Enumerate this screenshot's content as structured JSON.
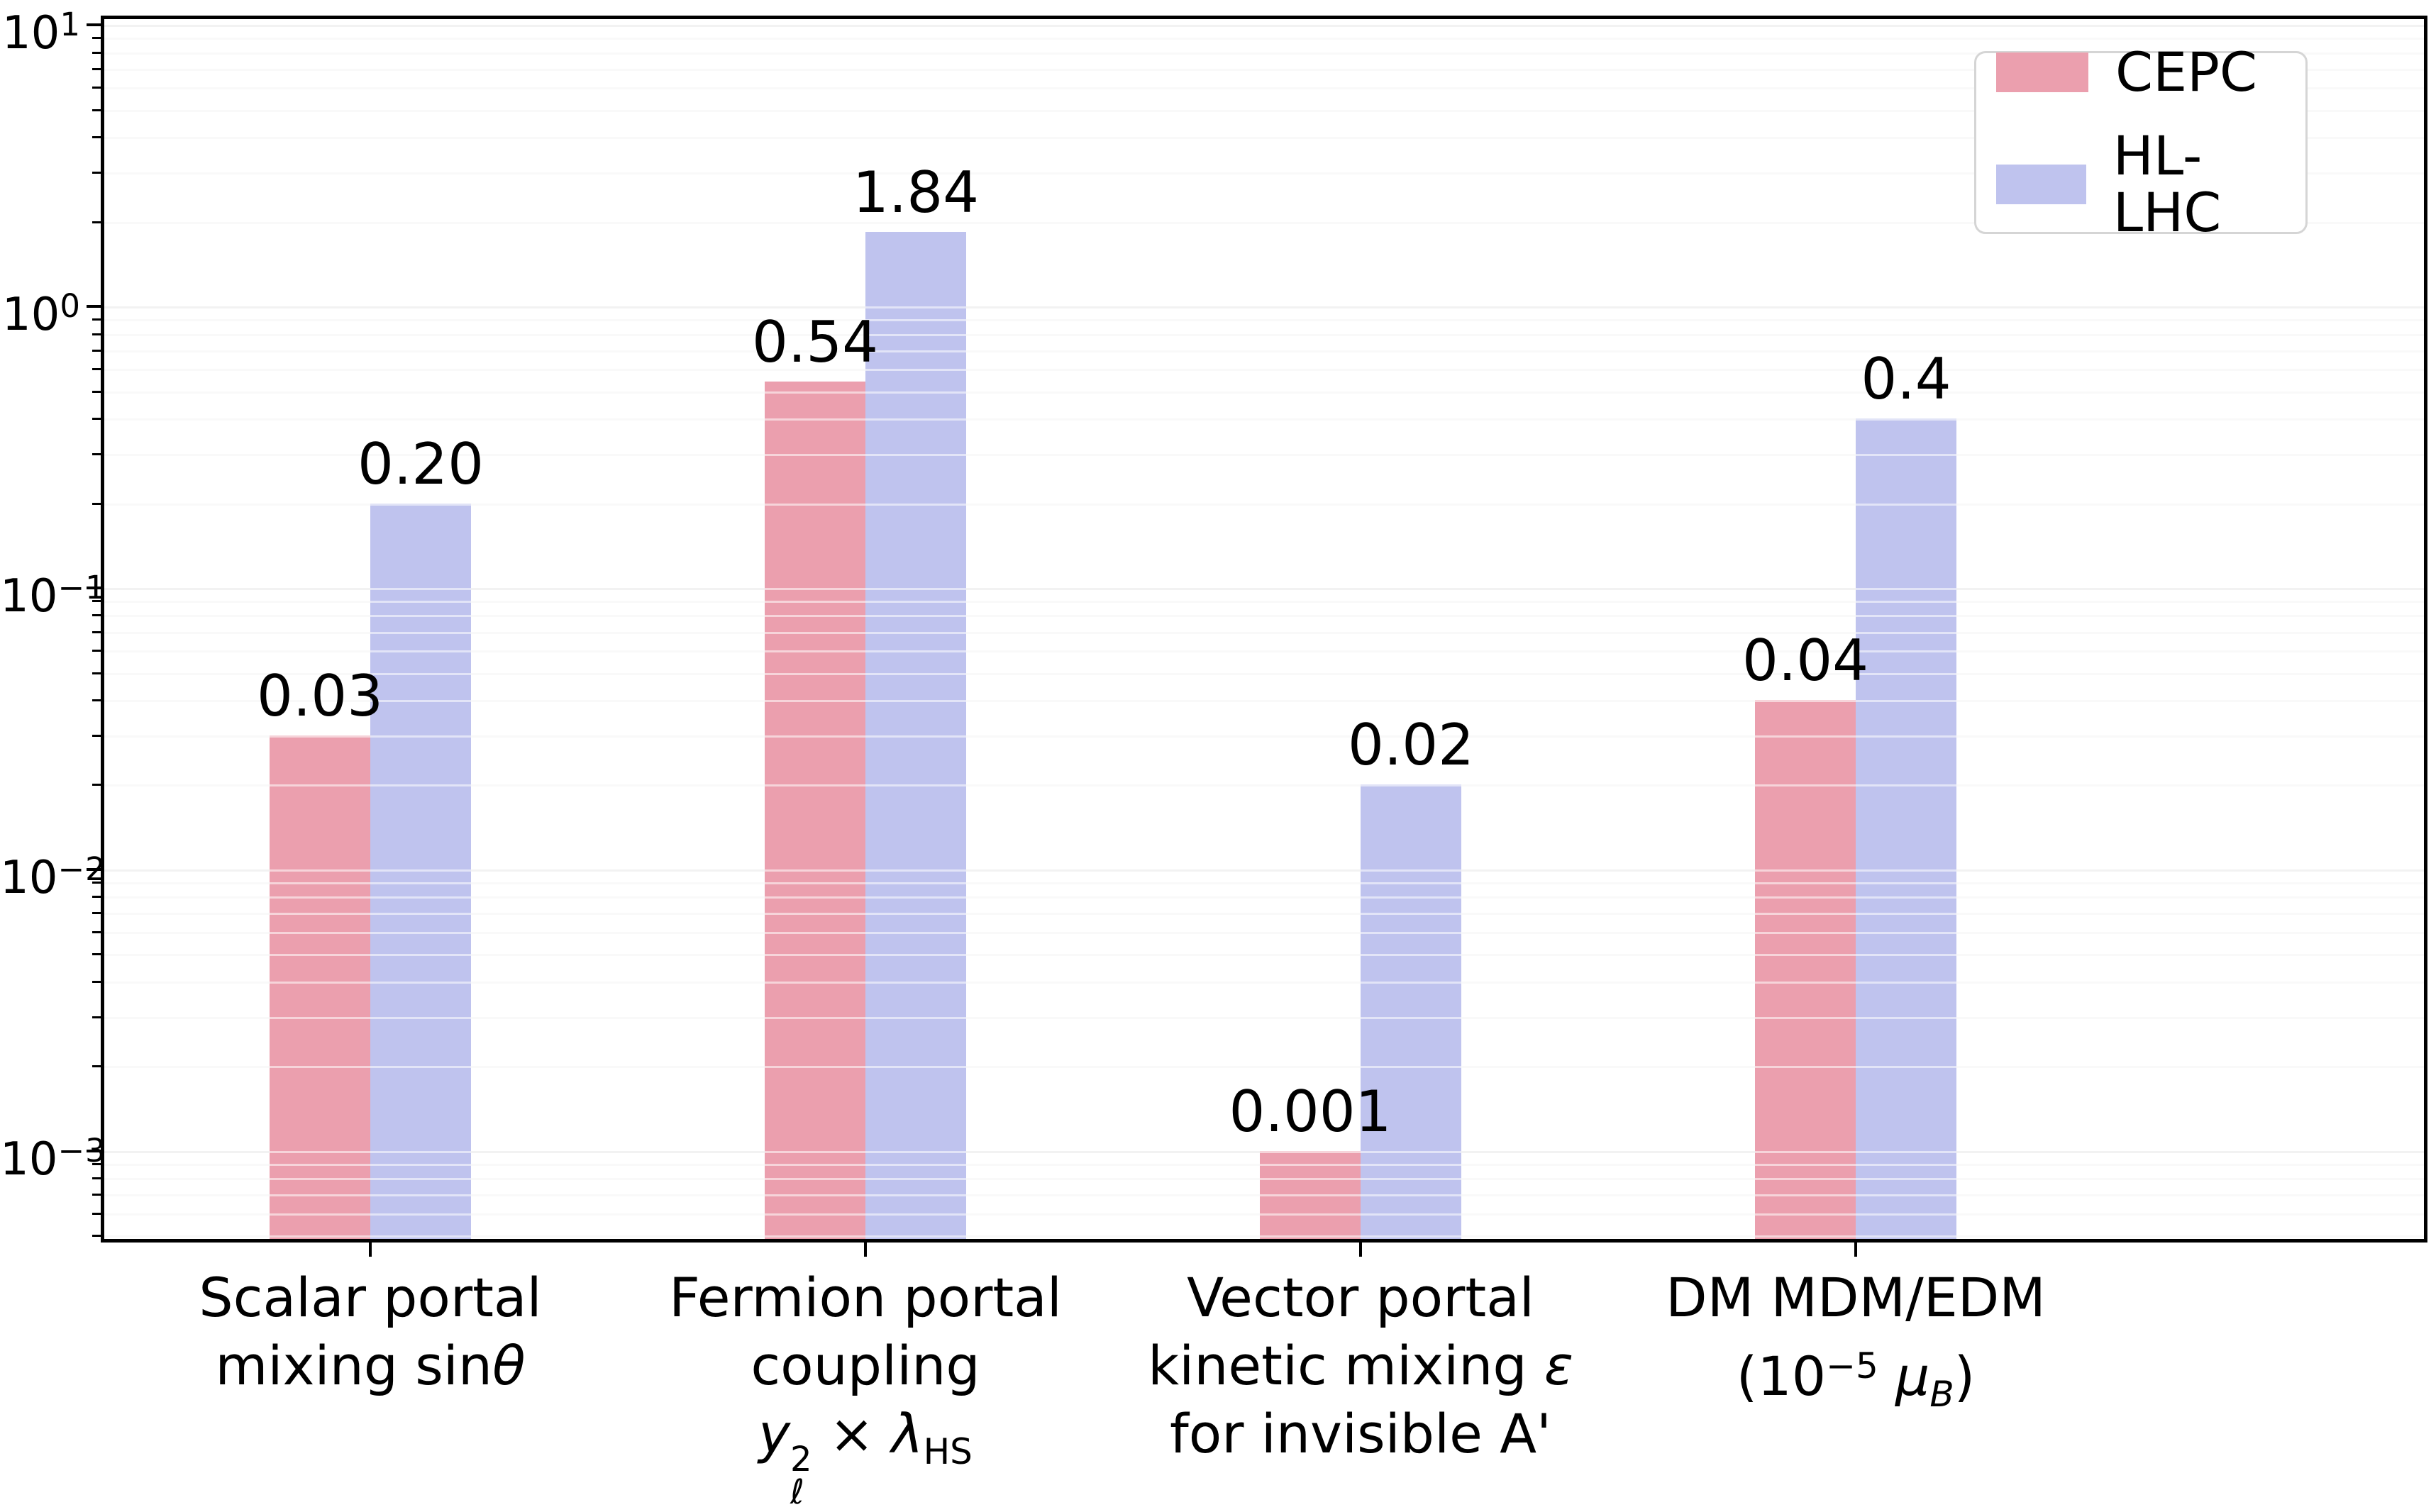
{
  "chart_data": {
    "type": "bar",
    "log_scale": true,
    "title": "",
    "xlabel": "",
    "ylabel": "",
    "ylim": [
      0.000487,
      10.48
    ],
    "grid": "horizontal major+minor, drawn over bars",
    "legend_position": "upper right",
    "yticks": [
      {
        "base": "10",
        "exp": "1",
        "value": 10
      },
      {
        "base": "10",
        "exp": "0",
        "value": 1
      },
      {
        "base": "10",
        "exp": "−1",
        "value": 0.1
      },
      {
        "base": "10",
        "exp": "−2",
        "value": 0.01
      },
      {
        "base": "10",
        "exp": "−3",
        "value": 0.001
      }
    ],
    "categories": [
      {
        "name": "Scalar portal mixing sin(theta)",
        "lines": [
          [
            {
              "t": "Scalar portal"
            }
          ],
          [
            {
              "t": "mixing sin"
            },
            {
              "t": "θ",
              "it": true
            }
          ]
        ]
      },
      {
        "name": "Fermion portal coupling y_l^2 x lambda_HS",
        "lines": [
          [
            {
              "t": "Fermion portal"
            }
          ],
          [
            {
              "t": "coupling"
            }
          ],
          [
            {
              "t": "y",
              "it": true
            },
            {
              "stack": {
                "sup": "2",
                "sub": "ℓ"
              }
            },
            {
              "t": " × "
            },
            {
              "t": "λ",
              "it": true
            },
            {
              "t": "HS",
              "sub": true
            }
          ]
        ]
      },
      {
        "name": "Vector portal kinetic mixing epsilon for invisible A'",
        "lines": [
          [
            {
              "t": "Vector portal"
            }
          ],
          [
            {
              "t": "kinetic mixing "
            },
            {
              "t": "ε",
              "it": true
            }
          ],
          [
            {
              "t": "for invisible A'"
            }
          ]
        ]
      },
      {
        "name": "DM MDM/EDM (10^-5 mu_B)",
        "lines": [
          [
            {
              "t": "DM MDM/EDM"
            }
          ],
          [
            {
              "t": "(10"
            },
            {
              "t": "−5",
              "sup": true
            },
            {
              "t": " "
            },
            {
              "t": "μ",
              "it": true
            },
            {
              "t": "B",
              "sub": true,
              "it": true
            },
            {
              "t": ")"
            }
          ]
        ]
      }
    ],
    "series": [
      {
        "name": "CEPC",
        "color": "#eb9fae",
        "values": [
          0.03,
          0.54,
          0.001,
          0.04
        ],
        "labels": [
          "0.03",
          "0.54",
          "0.001",
          "0.04"
        ]
      },
      {
        "name": "HL-LHC",
        "color": "#bfc3ee",
        "values": [
          0.2,
          1.84,
          0.02,
          0.4
        ],
        "labels": [
          "0.20",
          "1.84",
          "0.02",
          "0.4"
        ]
      }
    ]
  },
  "legend": {
    "items": [
      {
        "label": "CEPC",
        "color": "#eb9fae"
      },
      {
        "label": "HL-LHC",
        "color": "#bfc3ee"
      }
    ]
  },
  "colors": {
    "grid_major": "#e2e2e2",
    "grid_minor": "#f2f2f2",
    "axis": "#000000",
    "background": "#ffffff"
  }
}
